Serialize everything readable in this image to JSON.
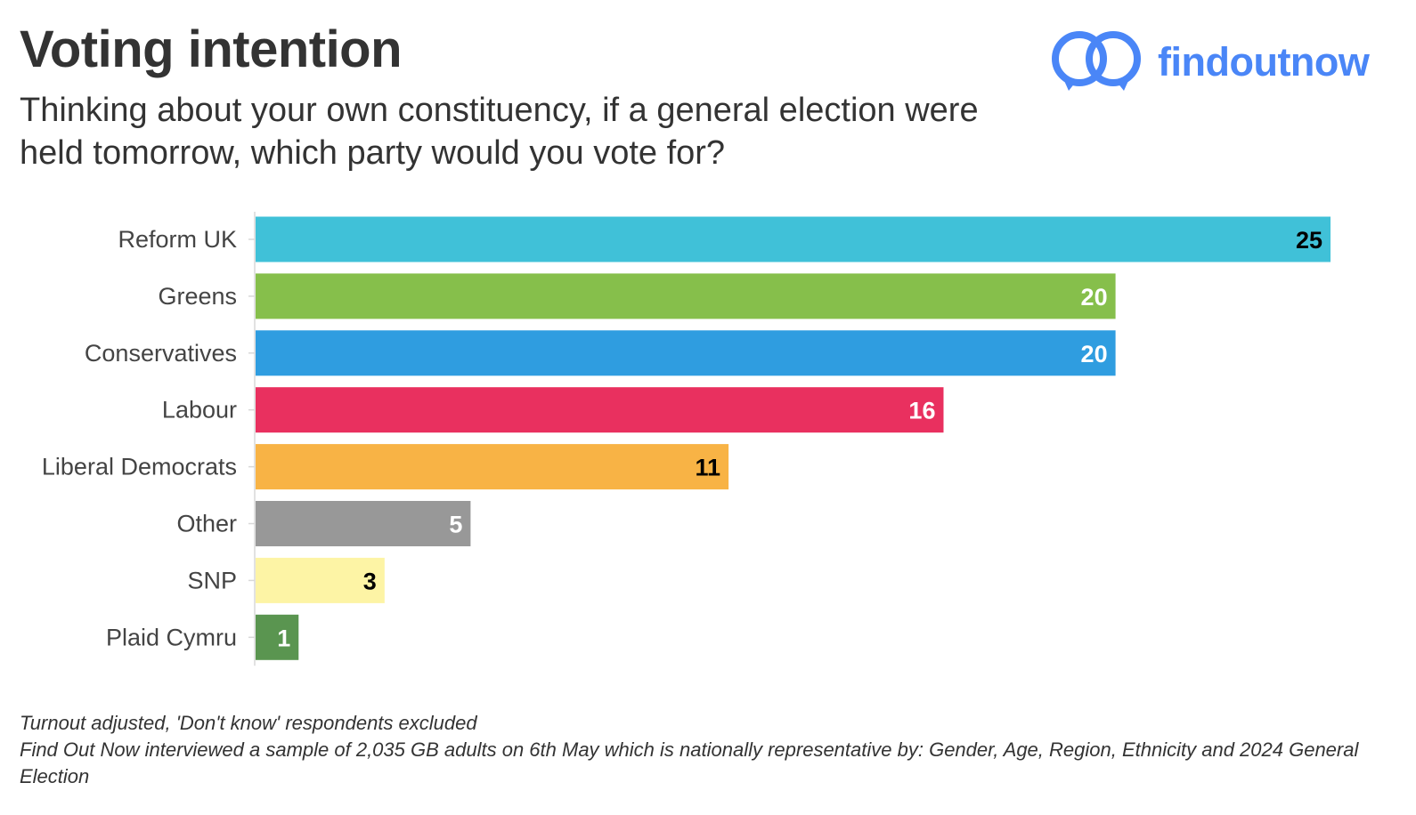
{
  "header": {
    "title": "Voting intention",
    "subtitle": "Thinking about your own constituency, if a general election were held tomorrow, which party would you vote for?"
  },
  "logo": {
    "text": "findoutnow",
    "icon": "two-interlocking-speech-rings-icon",
    "color": "#4a86f7"
  },
  "chart_data": {
    "type": "bar",
    "orientation": "horizontal",
    "categories": [
      "Reform UK",
      "Greens",
      "Conservatives",
      "Labour",
      "Liberal Democrats",
      "Other",
      "SNP",
      "Plaid Cymru"
    ],
    "values": [
      25,
      20,
      20,
      16,
      11,
      5,
      3,
      1
    ],
    "colors": [
      "#40c1d8",
      "#86bf4b",
      "#2f9de0",
      "#e9305f",
      "#f8b345",
      "#989898",
      "#fdf4a5",
      "#5a9550"
    ],
    "label_colors": [
      "#000000",
      "#ffffff",
      "#ffffff",
      "#ffffff",
      "#000000",
      "#ffffff",
      "#000000",
      "#ffffff"
    ],
    "xlim": [
      0,
      25
    ],
    "grid": false,
    "legend": "none",
    "data_labels": true
  },
  "footnotes": [
    "Turnout adjusted, 'Don't know' respondents excluded",
    "Find Out Now interviewed a sample of 2,035 GB adults on 6th May which is nationally representative by: Gender, Age, Region, Ethnicity and 2024 General Election"
  ]
}
